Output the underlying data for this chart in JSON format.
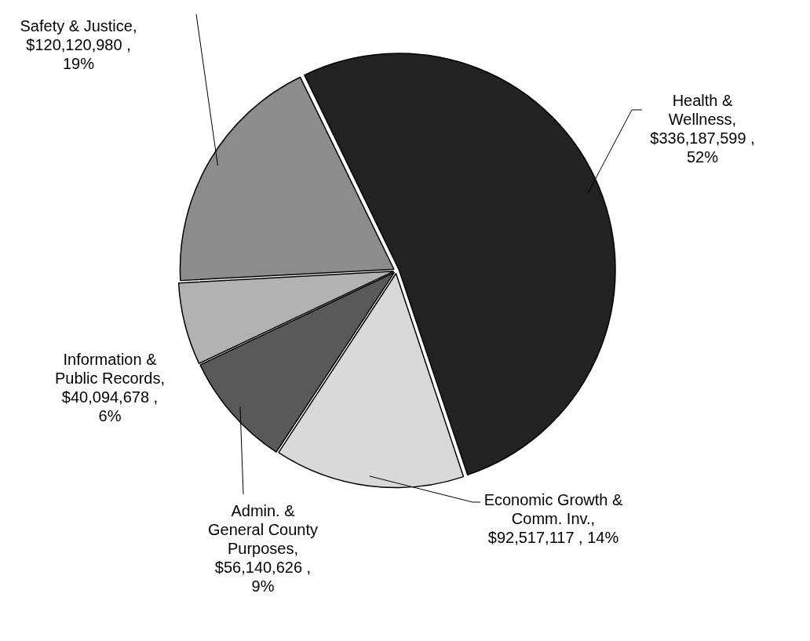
{
  "chart_data": {
    "type": "pie",
    "categories": [
      "Health & Wellness",
      "Economic Growth & Comm. Inv.",
      "Admin. & General County Purposes",
      "Information & Public Records",
      "Safety & Justice"
    ],
    "values": [
      336187599,
      92517117,
      56140626,
      40094678,
      120120980
    ],
    "value_labels": [
      ", $336,187,599 , 52%",
      ", $92,517,117 , 14%",
      ", $56,140,626 , 9%",
      ", $40,094,678 , 6%",
      ", $120,120,980 , 19%"
    ],
    "colors": [
      "#222222",
      "#d9d9d9",
      "#595959",
      "#b2b2b2",
      "#8c8c8c"
    ],
    "legend": false
  }
}
